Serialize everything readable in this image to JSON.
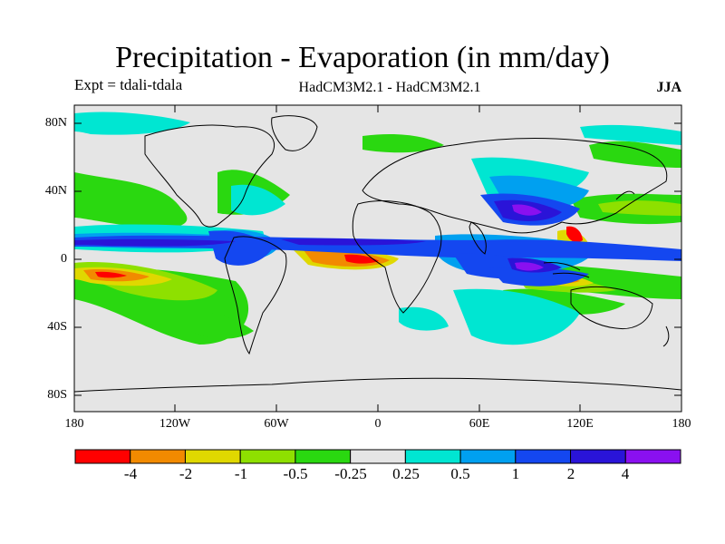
{
  "title": "Precipitation - Evaporation (in mm/day)",
  "subtitle_left": "Expt = tdali-tdala",
  "subtitle_center": "HadCM3M2.1 - HadCM3M2.1",
  "subtitle_right": "JJA",
  "map": {
    "projection": "cylindrical-equidistant",
    "lon_range": [
      -180,
      180
    ],
    "lat_range": [
      -90,
      90
    ],
    "background_color": "#e5e5e5",
    "coastline_color": "#000000",
    "y_ticks": [
      "80N",
      "40N",
      "0",
      "40S",
      "80S"
    ],
    "x_ticks": [
      "180",
      "120W",
      "60W",
      "0",
      "60E",
      "120E",
      "180"
    ]
  },
  "colorbar": {
    "colors": [
      "#ff0000",
      "#f28a00",
      "#e0d800",
      "#8ee000",
      "#2ad810",
      "#e5e5e5",
      "#00e6d2",
      "#00a0f0",
      "#1447f0",
      "#2a14d8",
      "#8a10f0"
    ],
    "labels": [
      "-4",
      "-2",
      "-1",
      "-0.5",
      "-0.25",
      "0.25",
      "0.5",
      "1",
      "2",
      "4"
    ]
  }
}
